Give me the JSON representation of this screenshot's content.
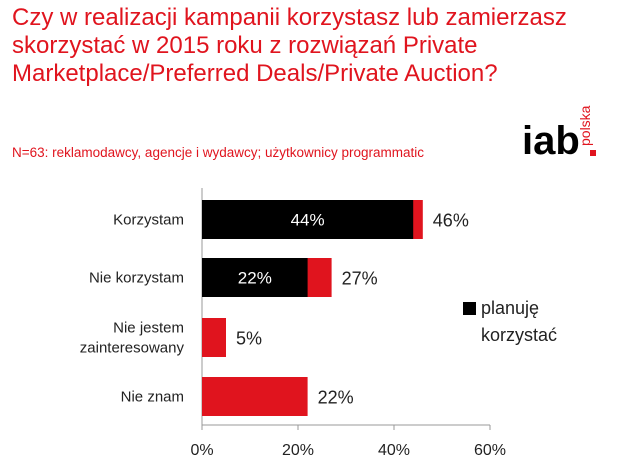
{
  "title": "Czy w realizacji kampanii korzystasz lub zamierzasz skorzystać w 2015 roku z rozwiązań Private Marketplace/Preferred Deals/Private Auction?",
  "subtitle": "N=63: reklamodawcy, agencje i wydawcy; użytkownicy programmatic",
  "logo": {
    "main": "iab",
    "sub": "polska"
  },
  "colors": {
    "accent": "#e0141e",
    "dark": "#000000",
    "axis": "#999999"
  },
  "chart_data": {
    "type": "bar",
    "orientation": "horizontal",
    "categories": [
      [
        "Korzystam"
      ],
      [
        "Nie korzystam"
      ],
      [
        "Nie jestem",
        "zainteresowany"
      ],
      [
        "Nie znam"
      ]
    ],
    "totals": [
      46,
      27,
      5,
      22
    ],
    "total_labels": [
      "46%",
      "27%",
      "5%",
      "22%"
    ],
    "series": [
      {
        "name": "planuję korzystać",
        "values": [
          44,
          22,
          null,
          null
        ],
        "labels": [
          "44%",
          "22%",
          "",
          ""
        ]
      }
    ],
    "legend": {
      "lines": [
        "planuję",
        "korzystać"
      ],
      "placement": "right"
    },
    "xlim": [
      0,
      60
    ],
    "ticks": [
      0,
      20,
      40,
      60
    ],
    "tick_labels": [
      "0%",
      "20%",
      "40%",
      "60%"
    ],
    "grid": false
  }
}
